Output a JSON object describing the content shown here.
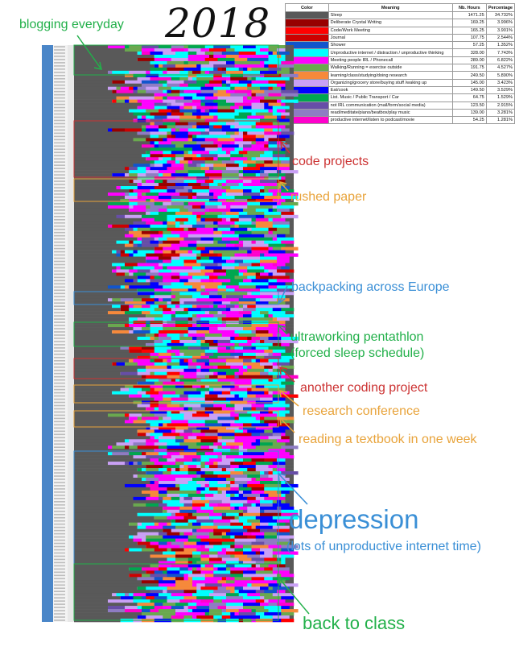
{
  "header": {
    "title": "2018"
  },
  "legend": {
    "columns": [
      "Color",
      "Meaning",
      "Nb. Hours",
      "Percentage"
    ],
    "rows": [
      {
        "color": "#595959",
        "meaning": "Sleep",
        "hours": "1471.25",
        "pct": "34.732%"
      },
      {
        "color": "#980000",
        "meaning": "Deliberate Crystal Writing",
        "hours": "169.25",
        "pct": "3.996%"
      },
      {
        "color": "#ff0000",
        "meaning": "Code/Work Meeting",
        "hours": "165.25",
        "pct": "3.901%"
      },
      {
        "color": "#cc0000",
        "meaning": "Journal",
        "hours": "107.75",
        "pct": "2.544%"
      },
      {
        "color": "#1155cc",
        "meaning": "Shower",
        "hours": "57.25",
        "pct": "1.352%"
      },
      {
        "color": "#00ffff",
        "meaning": "Unproductive internet / distraction / unproductive thinking",
        "hours": "328.00",
        "pct": "7.743%"
      },
      {
        "color": "#ff00ff",
        "meaning": "Meeting people IRL / Phonecall",
        "hours": "289.00",
        "pct": "6.822%"
      },
      {
        "color": "#6aa84f",
        "meaning": "Walking/Running = exercise outside",
        "hours": "191.75",
        "pct": "4.527%"
      },
      {
        "color": "#f6893b",
        "meaning": "learning/class/studying/doing research",
        "hours": "249.50",
        "pct": "5.890%"
      },
      {
        "color": "#c9a0f5",
        "meaning": "Organizing/grocery store/buying stuff /waking up",
        "hours": "145.00",
        "pct": "3.423%"
      },
      {
        "color": "#0000ff",
        "meaning": "Eat/cook",
        "hours": "149.50",
        "pct": "3.529%"
      },
      {
        "color": "#00a650",
        "meaning": "List. Music / Public Transport / Car",
        "hours": "64.75",
        "pct": "1.529%"
      },
      {
        "color": "#674ea7",
        "meaning": "not IRL communication (mail/form/social media)",
        "hours": "123.50",
        "pct": "2.915%"
      },
      {
        "color": "#8e7cc3",
        "meaning": "read/meditate/piano/beatbox/play music",
        "hours": "139.00",
        "pct": "3.281%"
      },
      {
        "color": "#ff00cc",
        "meaning": "productive internet/listen to podcast/movie",
        "hours": "54.25",
        "pct": "1.281%"
      }
    ]
  },
  "annotations": [
    {
      "id": "blogging",
      "text": "blogging everyday",
      "color": "#22b04a"
    },
    {
      "id": "code-projects",
      "text": "code projects",
      "color": "#cc3333"
    },
    {
      "id": "rushed-paper",
      "text": "rushed paper",
      "color": "#e8a33a"
    },
    {
      "id": "backpacking",
      "text": "backpacking across Europe",
      "color": "#3a8fd6"
    },
    {
      "id": "ultraworking-1",
      "text": "ultraworking pentathlon",
      "color": "#22b04a"
    },
    {
      "id": "ultraworking-2",
      "text": "(forced sleep schedule)",
      "color": "#22b04a"
    },
    {
      "id": "another-coding",
      "text": "another coding project",
      "color": "#cc3333"
    },
    {
      "id": "research-conf",
      "text": "research conference",
      "color": "#e8a33a"
    },
    {
      "id": "textbook",
      "text": "reading a textbook in one week",
      "color": "#e8a33a"
    },
    {
      "id": "depression-1",
      "text": "depression",
      "color": "#3a8fd6"
    },
    {
      "id": "depression-2",
      "text": "(lots of unproductive internet time)",
      "color": "#3a8fd6"
    },
    {
      "id": "back-to-class",
      "text": "back to class",
      "color": "#22b04a"
    }
  ],
  "chart_data": {
    "type": "heatmap",
    "title": "2018",
    "rows": "one row per day of 2018",
    "columns": "15-minute time slots across each day",
    "categories": [
      {
        "name": "Sleep",
        "hours": 1471.25,
        "percentage": 34.732
      },
      {
        "name": "Deliberate Crystal Writing",
        "hours": 169.25,
        "percentage": 3.996
      },
      {
        "name": "Code/Work Meeting",
        "hours": 165.25,
        "percentage": 3.901
      },
      {
        "name": "Journal",
        "hours": 107.75,
        "percentage": 2.544
      },
      {
        "name": "Shower",
        "hours": 57.25,
        "percentage": 1.352
      },
      {
        "name": "Unproductive internet / distraction / unproductive thinking",
        "hours": 328.0,
        "percentage": 7.743
      },
      {
        "name": "Meeting people IRL / Phonecall",
        "hours": 289.0,
        "percentage": 6.822
      },
      {
        "name": "Walking/Running = exercise outside",
        "hours": 191.75,
        "percentage": 4.527
      },
      {
        "name": "learning/class/studying/doing research",
        "hours": 249.5,
        "percentage": 5.89
      },
      {
        "name": "Organizing/grocery store/buying stuff /waking up",
        "hours": 145.0,
        "percentage": 3.423
      },
      {
        "name": "Eat/cook",
        "hours": 149.5,
        "percentage": 3.529
      },
      {
        "name": "List. Music / Public Transport / Car",
        "hours": 64.75,
        "percentage": 1.529
      },
      {
        "name": "not IRL communication (mail/form/social media)",
        "hours": 123.5,
        "percentage": 2.915
      },
      {
        "name": "read/meditate/piano/beatbox/play music",
        "hours": 139.0,
        "percentage": 3.281
      },
      {
        "name": "productive internet/listen to podcast/movie",
        "hours": 54.25,
        "percentage": 1.281
      }
    ],
    "legend": "top-right"
  }
}
